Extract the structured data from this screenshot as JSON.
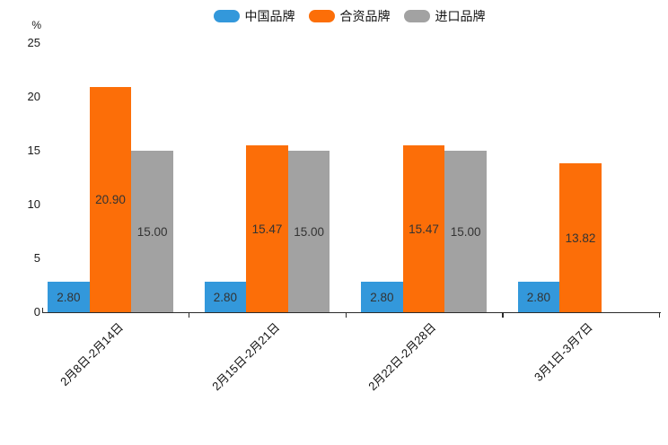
{
  "colors": {
    "axis": "#2b2b2b",
    "value_label_text": "#333333",
    "tick_label_text": "#1a1a1a",
    "background": "#ffffff"
  },
  "chart_data": {
    "type": "bar",
    "title": "",
    "ylabel": "%",
    "xlabel": "",
    "grid": false,
    "legend_position": "top",
    "ylim": [
      0,
      25
    ],
    "yticks": [
      "0",
      "5",
      "10",
      "15",
      "20",
      "25"
    ],
    "categories": [
      "2月8日-2月14日",
      "2月15日-2月21日",
      "2月22日-2月28日",
      "3月1日-3月7日"
    ],
    "series": [
      {
        "name": "中国品牌",
        "slug": "china-brand",
        "color": "#3398db",
        "values": [
          2.8,
          2.8,
          2.8,
          2.8
        ],
        "labels": [
          "2.80",
          "2.80",
          "2.80",
          "2.80"
        ]
      },
      {
        "name": "合资品牌",
        "slug": "joint-venture-brand",
        "color": "#fc6e08",
        "values": [
          20.9,
          15.47,
          15.47,
          13.82
        ],
        "labels": [
          "20.90",
          "15.47",
          "15.47",
          "13.82"
        ]
      },
      {
        "name": "进口品牌",
        "slug": "import-brand",
        "color": "#a2a2a2",
        "values": [
          15.0,
          15.0,
          15.0,
          null
        ],
        "labels": [
          "15.00",
          "15.00",
          "15.00",
          null
        ]
      }
    ]
  }
}
